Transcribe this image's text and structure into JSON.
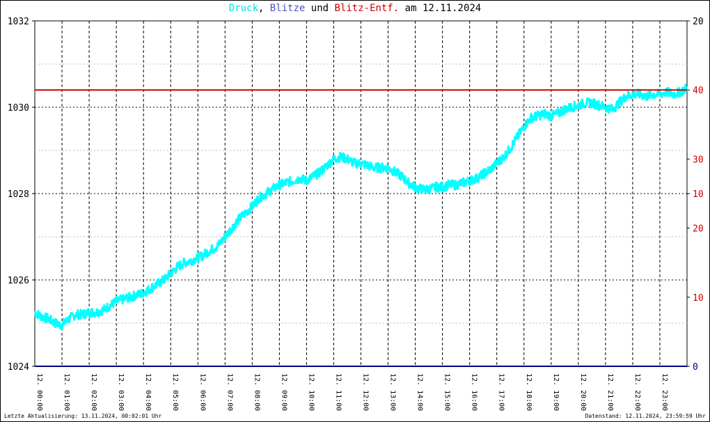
{
  "title": {
    "part1": "Druck",
    "sep1": ", ",
    "part2": "Blitze",
    "sep2": " und ",
    "part3": "Blitz-Entf.",
    "sep3": " am ",
    "date": "12.11.2024"
  },
  "colors": {
    "druck": "#00ffff",
    "blitze": "#5050c0",
    "entf": "#cc0000",
    "grid": "#000000",
    "baseline": "#000080"
  },
  "footer": {
    "left": "Letzte Aktualisierung: 13.11.2024, 00:02:01 Uhr",
    "right": "Datenstand: 12.11.2024, 23:59:59 Uhr"
  },
  "chart_data": {
    "type": "line",
    "x_unit": "hours",
    "xlim": [
      0,
      24
    ],
    "x_tick_labels": [
      "12. 00:00",
      "12. 01:00",
      "12. 02:00",
      "12. 03:00",
      "12. 04:00",
      "12. 05:00",
      "12. 06:00",
      "12. 07:00",
      "12. 08:00",
      "12. 09:00",
      "12. 10:00",
      "12. 11:00",
      "12. 12:00",
      "12. 13:00",
      "12. 14:00",
      "12. 15:00",
      "12. 16:00",
      "12. 17:00",
      "12. 18:00",
      "12. 19:00",
      "12. 20:00",
      "12. 21:00",
      "12. 22:00",
      "12. 23:00"
    ],
    "ylim": [
      1024,
      1032
    ],
    "y_ticks": [
      1024,
      1026,
      1028,
      1030,
      1032
    ],
    "right_axis": {
      "ticks": [
        {
          "label": "0",
          "value_frac": 0.0,
          "color": "#000080"
        },
        {
          "label": "10",
          "value_frac": 0.2,
          "color": "#cc0000"
        },
        {
          "label": "20",
          "value_frac": 0.4,
          "color": "#cc0000"
        },
        {
          "label": "10",
          "value_frac": 0.5,
          "color": "#cc0000"
        },
        {
          "label": "30",
          "value_frac": 0.6,
          "color": "#cc0000"
        },
        {
          "label": "40",
          "value_frac": 0.8,
          "color": "#cc0000"
        },
        {
          "label": "20",
          "value_frac": 1.0,
          "color": "#000000"
        }
      ]
    },
    "series": [
      {
        "name": "Druck",
        "color": "#00ffff",
        "x": [
          0,
          0.25,
          0.5,
          0.75,
          1.0,
          1.25,
          1.5,
          1.75,
          2.0,
          2.25,
          2.5,
          2.75,
          3.0,
          3.25,
          3.5,
          3.75,
          4.0,
          4.25,
          4.5,
          4.75,
          5.0,
          5.25,
          5.5,
          5.75,
          6.0,
          6.25,
          6.5,
          6.75,
          7.0,
          7.25,
          7.5,
          7.75,
          8.0,
          8.25,
          8.5,
          8.75,
          9.0,
          9.25,
          9.5,
          9.75,
          10.0,
          10.25,
          10.5,
          10.75,
          11.0,
          11.25,
          11.5,
          11.75,
          12.0,
          12.25,
          12.5,
          12.75,
          13.0,
          13.25,
          13.5,
          13.75,
          14.0,
          14.25,
          14.5,
          14.75,
          15.0,
          15.25,
          15.5,
          15.75,
          16.0,
          16.25,
          16.5,
          16.75,
          17.0,
          17.25,
          17.5,
          17.75,
          18.0,
          18.25,
          18.5,
          18.75,
          19.0,
          19.25,
          19.5,
          19.75,
          20.0,
          20.25,
          20.5,
          20.75,
          21.0,
          21.25,
          21.5,
          21.75,
          22.0,
          22.25,
          22.5,
          22.75,
          23.0,
          23.25,
          23.5,
          23.75,
          24.0
        ],
        "values": [
          1025.25,
          1025.15,
          1025.1,
          1025.0,
          1024.95,
          1025.1,
          1025.2,
          1025.2,
          1025.25,
          1025.25,
          1025.3,
          1025.4,
          1025.5,
          1025.55,
          1025.6,
          1025.65,
          1025.7,
          1025.8,
          1025.9,
          1026.0,
          1026.15,
          1026.3,
          1026.4,
          1026.45,
          1026.5,
          1026.6,
          1026.7,
          1026.8,
          1027.0,
          1027.2,
          1027.4,
          1027.55,
          1027.7,
          1027.9,
          1028.0,
          1028.1,
          1028.2,
          1028.25,
          1028.3,
          1028.35,
          1028.3,
          1028.4,
          1028.5,
          1028.65,
          1028.8,
          1028.85,
          1028.8,
          1028.7,
          1028.7,
          1028.65,
          1028.6,
          1028.6,
          1028.6,
          1028.5,
          1028.4,
          1028.25,
          1028.15,
          1028.1,
          1028.1,
          1028.15,
          1028.15,
          1028.2,
          1028.2,
          1028.25,
          1028.3,
          1028.35,
          1028.45,
          1028.55,
          1028.7,
          1028.85,
          1029.05,
          1029.3,
          1029.55,
          1029.75,
          1029.8,
          1029.85,
          1029.8,
          1029.85,
          1029.95,
          1030.0,
          1030.05,
          1030.1,
          1030.1,
          1030.05,
          1030.0,
          1029.95,
          1030.1,
          1030.25,
          1030.3,
          1030.3,
          1030.25,
          1030.3,
          1030.3,
          1030.35,
          1030.3,
          1030.35,
          1030.45
        ]
      },
      {
        "name": "Blitz-Entf.",
        "color": "#cc0000",
        "x": [
          0,
          24
        ],
        "values": [
          1030.4,
          1030.4
        ]
      }
    ]
  }
}
